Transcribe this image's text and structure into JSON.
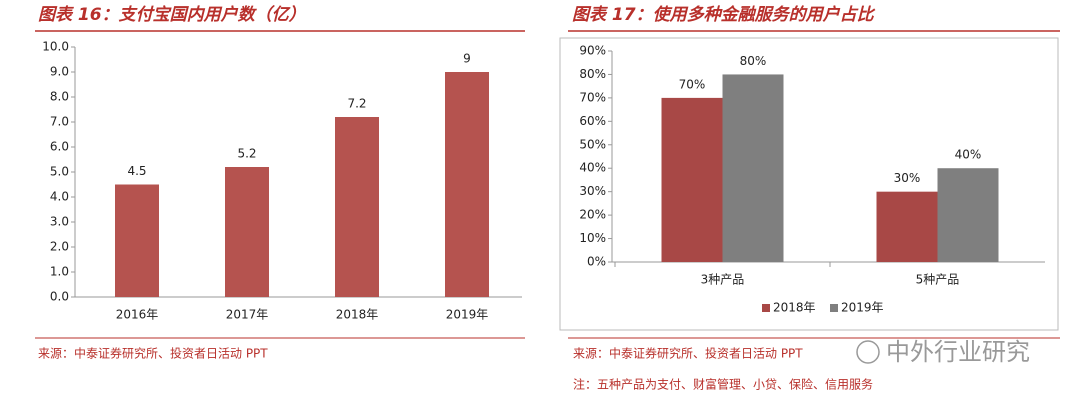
{
  "chart_data": [
    {
      "type": "bar",
      "title": "图表 16：支付宝国内用户数（亿）",
      "categories": [
        "2016年",
        "2017年",
        "2018年",
        "2019年"
      ],
      "values": [
        4.5,
        5.2,
        7.2,
        9
      ],
      "color": "#b5534f",
      "ylim": [
        0,
        10
      ],
      "yticks": [
        {
          "value": 0,
          "label": "0.0"
        },
        {
          "value": 1,
          "label": "1.0"
        },
        {
          "value": 2,
          "label": "2.0"
        },
        {
          "value": 3,
          "label": "3.0"
        },
        {
          "value": 4,
          "label": "4.0"
        },
        {
          "value": 5,
          "label": "5.0"
        },
        {
          "value": 6,
          "label": "6.0"
        },
        {
          "value": 7,
          "label": "7.0"
        },
        {
          "value": 8,
          "label": "8.0"
        },
        {
          "value": 9,
          "label": "9.0"
        },
        {
          "value": 10,
          "label": "10.0"
        }
      ],
      "source": "来源：中泰证券研究所、投资者日活动 PPT"
    },
    {
      "type": "bar",
      "title": "图表 17：使用多种金融服务的用户占比",
      "categories": [
        "3种产品",
        "5种产品"
      ],
      "series": [
        {
          "name": "2018年",
          "color": "#a84846",
          "values": [
            70,
            30
          ],
          "value_labels": [
            "70%",
            "30%"
          ]
        },
        {
          "name": "2019年",
          "color": "#7f7f7f",
          "values": [
            80,
            40
          ],
          "value_labels": [
            "80%",
            "40%"
          ]
        }
      ],
      "ylim": [
        0,
        90
      ],
      "yticks": [
        {
          "value": 0,
          "label": "0%"
        },
        {
          "value": 10,
          "label": "10%"
        },
        {
          "value": 20,
          "label": "20%"
        },
        {
          "value": 30,
          "label": "30%"
        },
        {
          "value": 40,
          "label": "40%"
        },
        {
          "value": 50,
          "label": "50%"
        },
        {
          "value": 60,
          "label": "60%"
        },
        {
          "value": 70,
          "label": "70%"
        },
        {
          "value": 80,
          "label": "80%"
        },
        {
          "value": 90,
          "label": "90%"
        }
      ],
      "legend": "bottom",
      "source": "来源：中泰证券研究所、投资者日活动 PPT",
      "note": "注：五种产品为支付、财富管理、小贷、保险、信用服务"
    }
  ],
  "watermark": "中外行业研究"
}
